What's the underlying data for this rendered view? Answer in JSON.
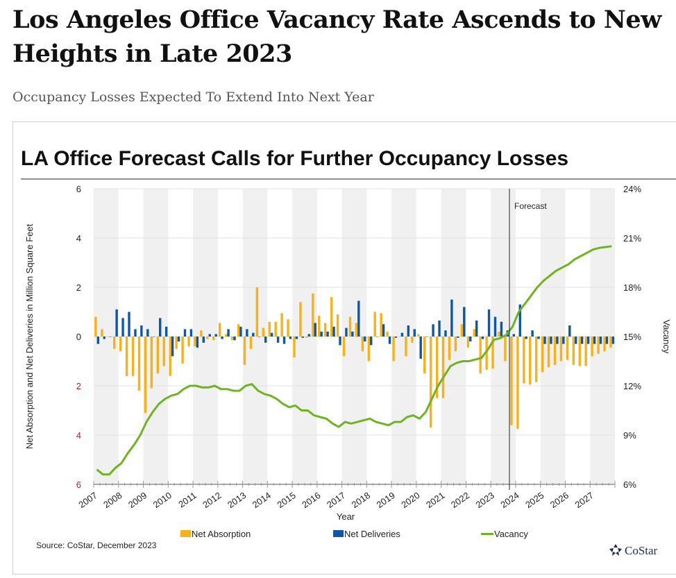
{
  "article": {
    "headline": "Los Angeles Office Vacancy Rate Ascends to New Heights in Late 2023",
    "subheadline": "Occupancy Losses Expected To Extend Into Next Year"
  },
  "chart_data": {
    "type": "bar+line",
    "title": "LA Office Forecast Calls for Further Occupancy Losses",
    "xlabel": "Year",
    "ylabel": "Net Absorption and Net Deliveries in Million Square Feet",
    "y2label": "Vacancy",
    "ylim": [
      -6,
      6
    ],
    "y2lim": [
      6,
      24
    ],
    "yticks": [
      "6",
      "4",
      "2",
      "0",
      "2",
      "4",
      "6"
    ],
    "y2ticks": [
      "24%",
      "21%",
      "18%",
      "15%",
      "12%",
      "9%",
      "6%"
    ],
    "years": [
      "2007",
      "2008",
      "2009",
      "2010",
      "2011",
      "2012",
      "2013",
      "2014",
      "2015",
      "2016",
      "2017",
      "2018",
      "2019",
      "2020",
      "2021",
      "2022",
      "2023",
      "2024",
      "2025",
      "2026",
      "2027"
    ],
    "forecast_label": "Forecast",
    "forecast_start": "2023 Q4",
    "legend_position": "bottom",
    "series": [
      {
        "name": "Net Absorption",
        "type": "bar",
        "color": "#F5B21B",
        "values": [
          0.8,
          0.3,
          0,
          -0.5,
          -0.6,
          -1.6,
          -1.6,
          -2.2,
          -3.1,
          -2.1,
          -1.5,
          -1.2,
          -1.6,
          -0.5,
          -1.1,
          -0.4,
          -0.4,
          0.25,
          -0.1,
          -0.15,
          0.55,
          0.1,
          -0.15,
          0.5,
          -1.15,
          -0.5,
          2.0,
          0.35,
          0.6,
          0.6,
          0.95,
          0.7,
          -0.85,
          1.4,
          -0.05,
          1.75,
          0.85,
          0.55,
          1.6,
          0.9,
          -0.8,
          0.8,
          0.55,
          -0.6,
          -1.0,
          1.0,
          0.95,
          0.2,
          -1.0,
          0,
          -0.8,
          -0.25,
          0.1,
          -1.5,
          -3.7,
          -2.5,
          -2.5,
          -0.95,
          -0.6,
          0.5,
          -0.45,
          0.3,
          -1.5,
          -1.35,
          -1.3,
          0.2,
          -1.0,
          -3.6,
          -3.75,
          -1.9,
          -1.95,
          -1.85,
          -1.45,
          -1.25,
          -1.15,
          -1.0,
          -0.95,
          -1.15,
          -1.2,
          -1.2,
          -0.8,
          -0.7,
          -0.6,
          -0.45
        ]
      },
      {
        "name": "Net Deliveries",
        "type": "bar",
        "color": "#0F56A4",
        "values": [
          -0.3,
          -0.1,
          0,
          1.1,
          0.75,
          1.0,
          0.3,
          0.45,
          0.3,
          0,
          0.75,
          0.4,
          -0.8,
          -0.2,
          0.3,
          0.3,
          -0.45,
          -0.25,
          0.1,
          0.1,
          -0.1,
          0.3,
          -0.15,
          0.4,
          0.3,
          0.15,
          0,
          -0.25,
          0.15,
          -0.25,
          -0.3,
          -0.1,
          -0.1,
          -0.05,
          0.1,
          0.55,
          0.2,
          0.2,
          0.4,
          -0.35,
          0.35,
          0.2,
          1.45,
          -0.2,
          -0.35,
          0,
          0.5,
          -0.3,
          -0.05,
          0.15,
          0.45,
          0.3,
          -0.9,
          0,
          0.5,
          0.65,
          0.25,
          1.5,
          -0.05,
          1.2,
          -0.2,
          0.65,
          -0.1,
          1.1,
          0.8,
          0.6,
          0.25,
          0.1,
          1.3,
          -0.1,
          0.25,
          -0.1,
          -0.3,
          -0.3,
          -0.3,
          -0.3,
          0.45,
          -0.3,
          -0.3,
          -0.3,
          -0.3,
          -0.3,
          -0.3,
          -0.3
        ]
      },
      {
        "name": "Vacancy",
        "type": "line",
        "axis": "right",
        "color": "#6FB320",
        "values": [
          6.9,
          6.6,
          6.6,
          7.0,
          7.3,
          7.9,
          8.4,
          9.0,
          9.8,
          10.4,
          10.9,
          11.2,
          11.4,
          11.5,
          11.8,
          12.0,
          12.0,
          11.9,
          11.9,
          12.0,
          11.8,
          11.8,
          11.7,
          11.7,
          12.0,
          12.1,
          11.7,
          11.5,
          11.4,
          11.2,
          10.9,
          10.7,
          10.8,
          10.5,
          10.5,
          10.2,
          10.1,
          10.0,
          9.7,
          9.5,
          9.8,
          9.7,
          9.8,
          9.9,
          10.0,
          9.8,
          9.7,
          9.6,
          9.8,
          9.8,
          10.1,
          10.2,
          10.0,
          10.4,
          11.2,
          12.0,
          12.6,
          13.2,
          13.4,
          13.5,
          13.5,
          13.6,
          13.7,
          14.2,
          14.8,
          14.9,
          15.1,
          15.6,
          16.5,
          17.0,
          17.5,
          18.0,
          18.4,
          18.7,
          19.0,
          19.2,
          19.4,
          19.7,
          19.9,
          20.1,
          20.3,
          20.4,
          20.45,
          20.5
        ]
      }
    ],
    "source": "Source: CoStar, December 2023",
    "logo": "CoStar"
  }
}
